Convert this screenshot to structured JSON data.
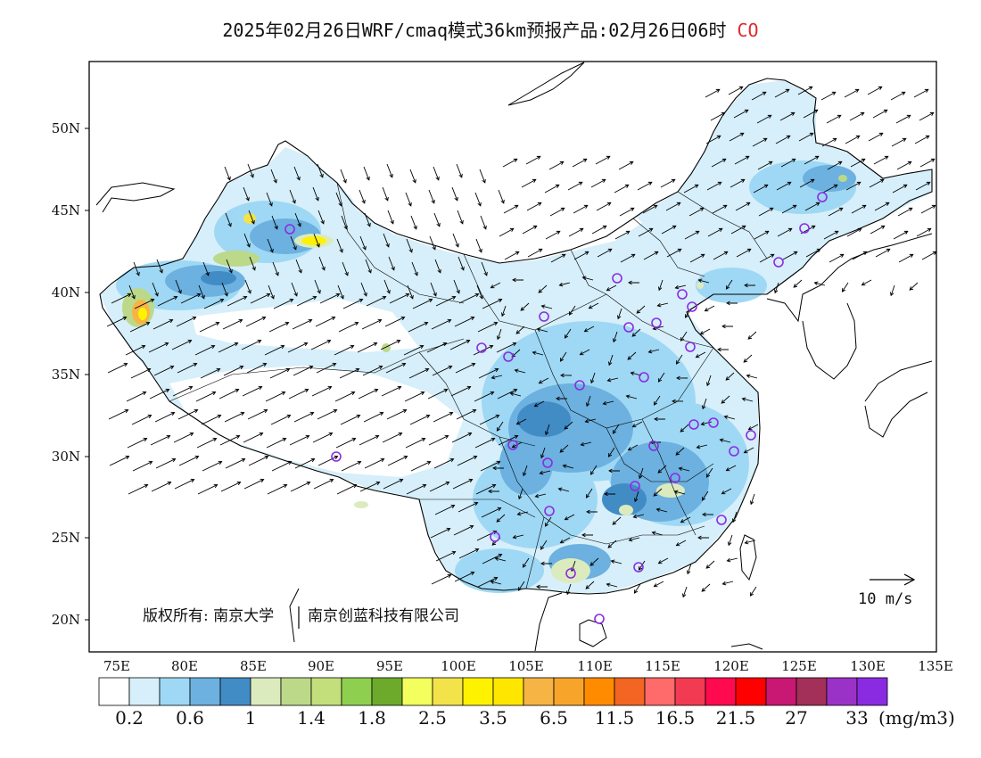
{
  "title": {
    "text": "2025年02月26日WRF/cmaq模式36km预报产品:02月26日06时",
    "pollutant": "CO"
  },
  "map": {
    "lon_range": [
      73,
      135
    ],
    "lat_range": [
      18,
      54
    ],
    "lat_ticks": [
      "50N",
      "45N",
      "40N",
      "35N",
      "30N",
      "25N",
      "20N"
    ],
    "lat_values": [
      50,
      45,
      40,
      35,
      30,
      25,
      20
    ],
    "lon_ticks": [
      "75E",
      "80E",
      "85E",
      "90E",
      "95E",
      "100E",
      "105E",
      "110E",
      "115E",
      "120E",
      "125E",
      "130E",
      "135E"
    ],
    "lon_values": [
      75,
      80,
      85,
      90,
      95,
      100,
      105,
      110,
      115,
      120,
      125,
      130,
      135
    ],
    "copyright_left": "版权所有: 南京大学",
    "copyright_right": "南京创蓝科技有限公司",
    "wind_scale_label": "10 m/s",
    "station_color": "#8b2be2"
  },
  "colorbar": {
    "colors": [
      "#ffffff",
      "#d6effa",
      "#9fd8f4",
      "#6cb1df",
      "#428cc6",
      "#dcebbe",
      "#bcd98a",
      "#c3df7c",
      "#8fcf50",
      "#6daa2c",
      "#f2ff5c",
      "#f3e34a",
      "#fff200",
      "#ffe600",
      "#f6b445",
      "#f7a52a",
      "#ff8c00",
      "#f36522",
      "#ff6a6a",
      "#f23a52",
      "#ff0a4e",
      "#ff0000",
      "#c81873",
      "#a23058",
      "#9b32c8",
      "#8a2be2"
    ],
    "labels": [
      "0.2",
      "0.6",
      "1",
      "1.4",
      "1.8",
      "2.5",
      "3.5",
      "6.5",
      "11.5",
      "16.5",
      "21.5",
      "27",
      "33"
    ],
    "unit": "(mg/m3)"
  }
}
